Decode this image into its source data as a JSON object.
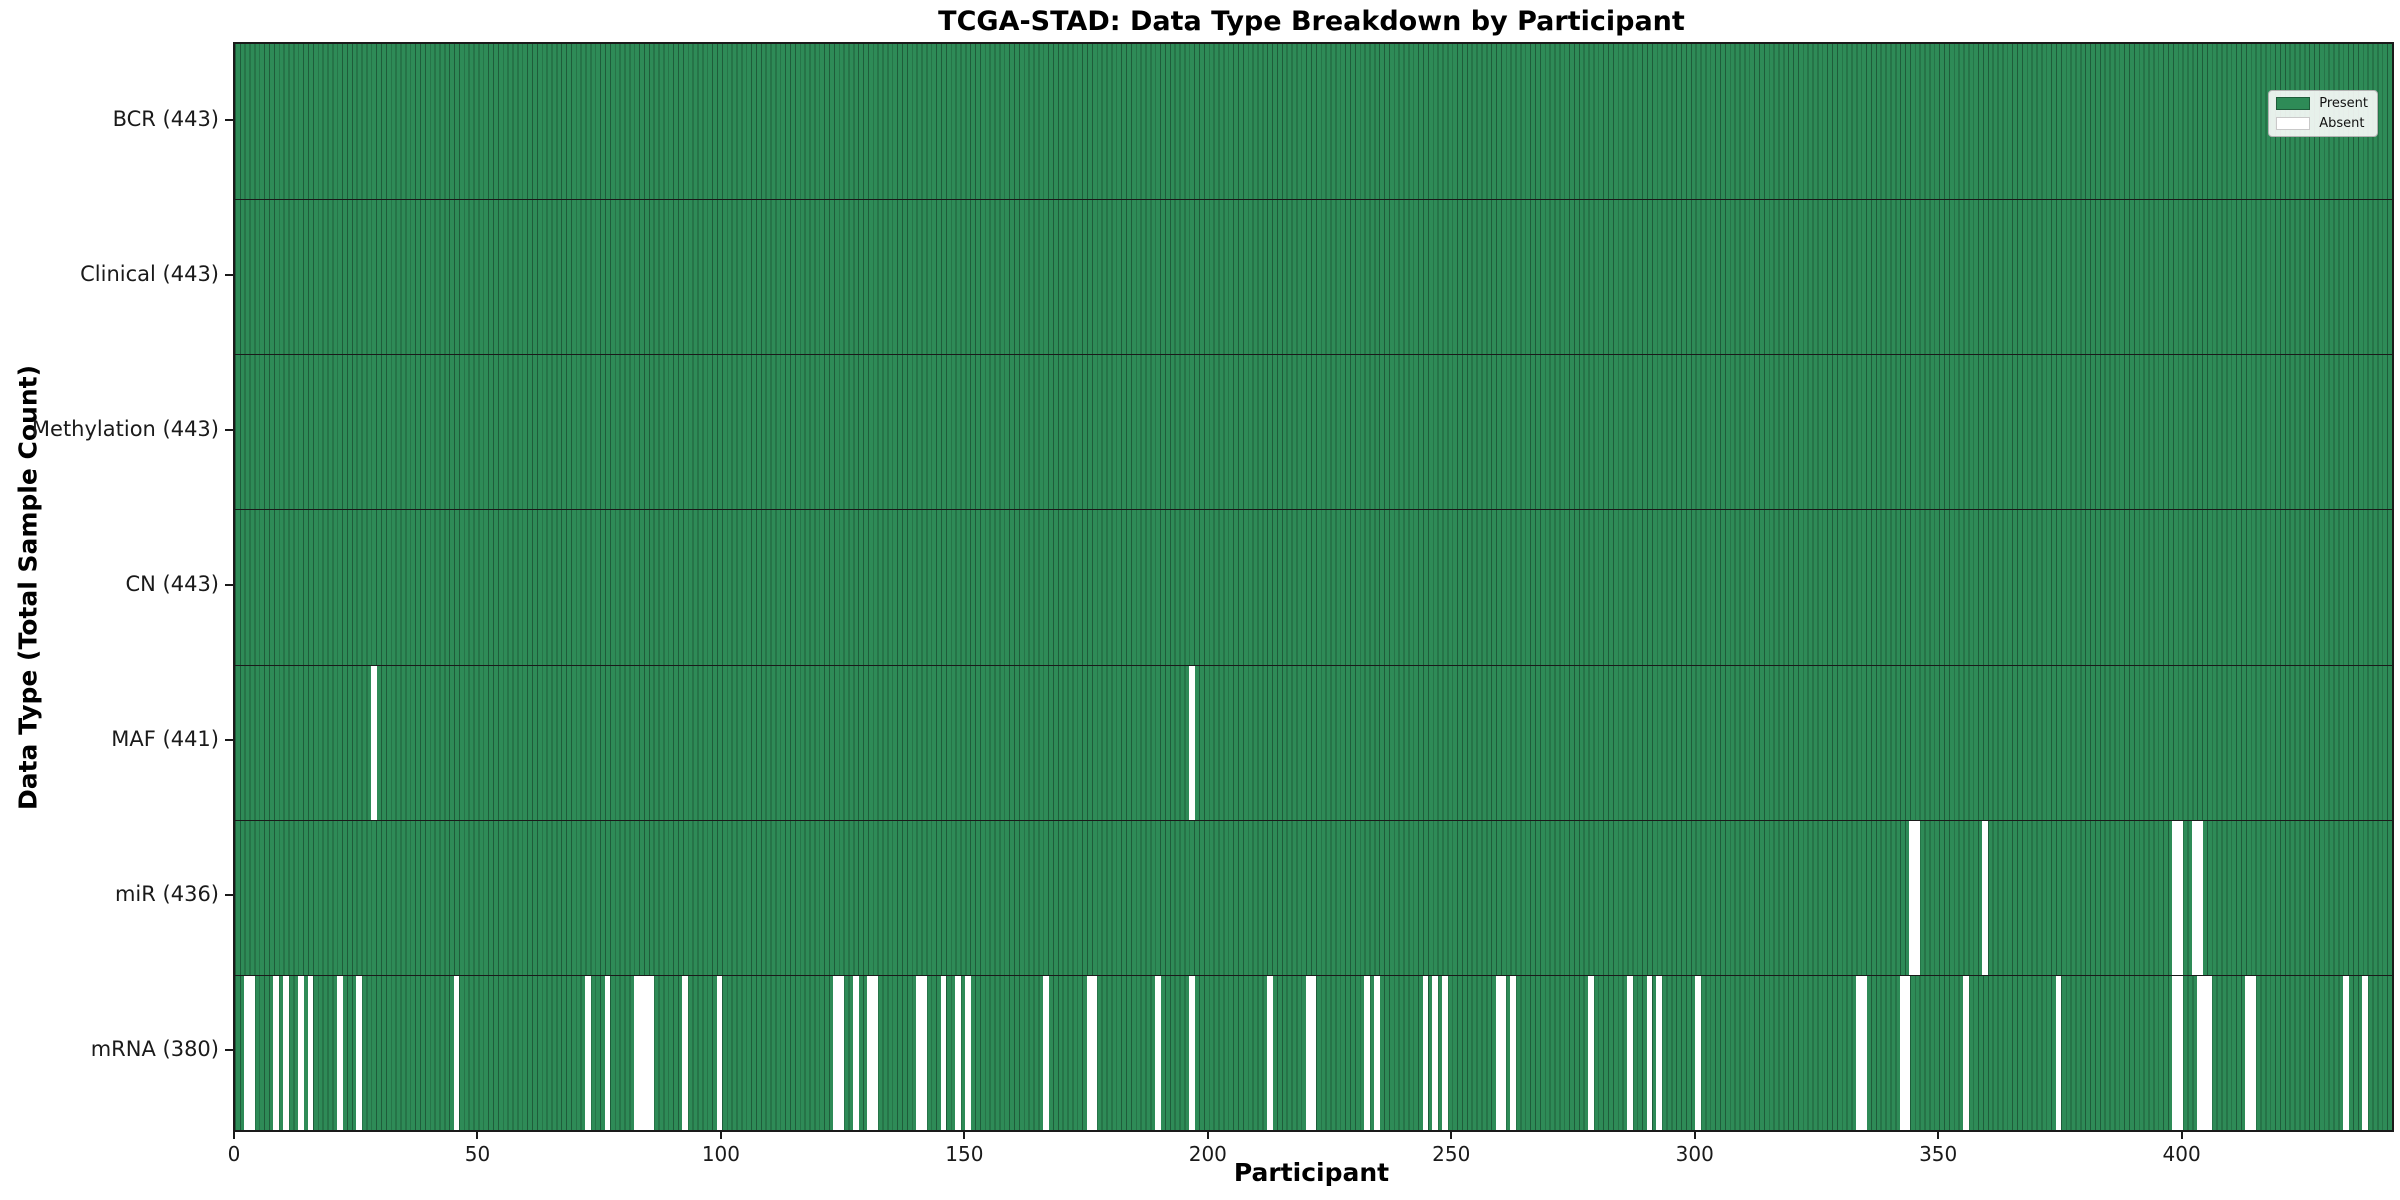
{
  "chart_data": {
    "type": "heatmap",
    "title": "TCGA-STAD: Data Type Breakdown by Participant",
    "xlabel": "Participant",
    "ylabel": "Data Type (Total Sample Count)",
    "n_participants": 443,
    "x_ticks": [
      0,
      50,
      100,
      150,
      200,
      250,
      300,
      350,
      400
    ],
    "xlim": [
      0,
      443
    ],
    "legend_position": "upper right",
    "grid": false,
    "colors": {
      "present": "#2e8b57",
      "absent": "#ffffff",
      "bar_edge": "#1e5c3a",
      "row_separator": "#1a1a1a",
      "spine": "#1a1a1a"
    },
    "legend": [
      {
        "label": "Present",
        "color": "#2e8b57"
      },
      {
        "label": "Absent",
        "color": "#ffffff"
      }
    ],
    "rows": [
      {
        "label": "BCR (443)",
        "total": 443,
        "missing": []
      },
      {
        "label": "Clinical (443)",
        "total": 443,
        "missing": []
      },
      {
        "label": "Methylation (443)",
        "total": 443,
        "missing": []
      },
      {
        "label": "CN (443)",
        "total": 443,
        "missing": []
      },
      {
        "label": "MAF (441)",
        "total": 441,
        "missing": [
          28,
          196
        ]
      },
      {
        "label": "miR (436)",
        "total": 436,
        "missing": [
          344,
          345,
          359,
          398,
          399,
          402,
          403
        ]
      },
      {
        "label": "mRNA (380)",
        "total": 380,
        "missing": [
          2,
          3,
          8,
          10,
          13,
          15,
          21,
          25,
          45,
          72,
          76,
          82,
          83,
          84,
          85,
          92,
          99,
          123,
          124,
          127,
          130,
          131,
          140,
          141,
          145,
          148,
          150,
          166,
          175,
          176,
          189,
          196,
          212,
          220,
          221,
          232,
          234,
          244,
          246,
          248,
          259,
          260,
          262,
          278,
          286,
          290,
          292,
          300,
          333,
          334,
          342,
          343,
          355,
          374,
          398,
          399,
          403,
          404,
          405,
          413,
          414,
          433,
          437
        ]
      }
    ]
  }
}
